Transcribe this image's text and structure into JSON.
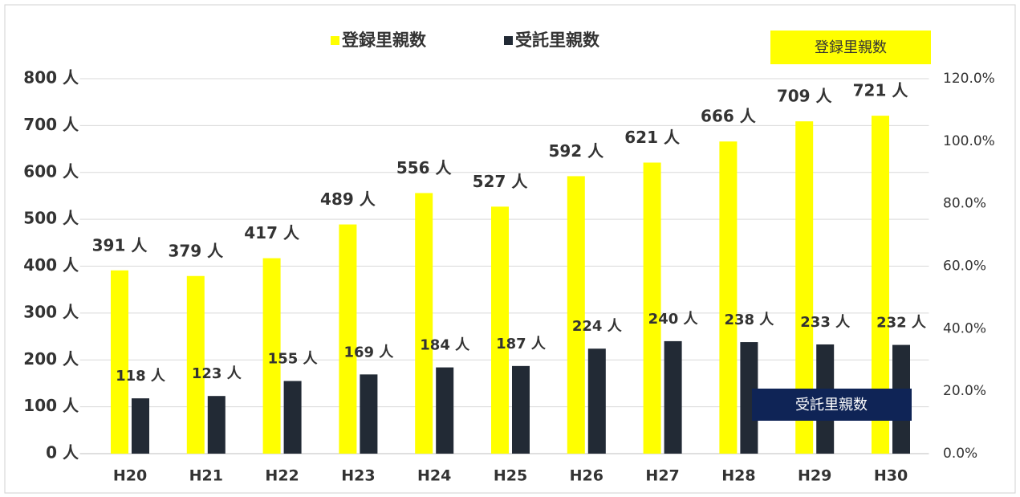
{
  "chart_data": {
    "type": "bar",
    "categories": [
      "H20",
      "H21",
      "H22",
      "H23",
      "H24",
      "H25",
      "H26",
      "H27",
      "H28",
      "H29",
      "H30"
    ],
    "series": [
      {
        "name": "登録里親数",
        "color": "#ffff00",
        "values": [
          391,
          379,
          417,
          489,
          556,
          527,
          592,
          621,
          666,
          709,
          721
        ],
        "value_labels": [
          "391 人",
          "379 人",
          "417 人",
          "489 人",
          "556 人",
          "527 人",
          "592 人",
          "621 人",
          "666 人",
          "709 人",
          "721 人"
        ]
      },
      {
        "name": "受託里親数",
        "color": "#222a35",
        "values": [
          118,
          123,
          155,
          169,
          184,
          187,
          224,
          240,
          238,
          233,
          232
        ],
        "value_labels": [
          "118 人",
          "123 人",
          "155 人",
          "169 人",
          "184 人",
          "187 人",
          "224 人",
          "240 人",
          "238 人",
          "233 人",
          "232 人"
        ]
      }
    ],
    "ylim": [
      0,
      800
    ],
    "yticks": [
      {
        "value": 0,
        "label": "0 人"
      },
      {
        "value": 100,
        "label": "100 人"
      },
      {
        "value": 200,
        "label": "200 人"
      },
      {
        "value": 300,
        "label": "300 人"
      },
      {
        "value": 400,
        "label": "400 人"
      },
      {
        "value": 500,
        "label": "500 人"
      },
      {
        "value": 600,
        "label": "600 人"
      },
      {
        "value": 700,
        "label": "700 人"
      },
      {
        "value": 800,
        "label": "800 人"
      }
    ],
    "y2lim": [
      0,
      120
    ],
    "y2ticks": [
      {
        "value": 0,
        "label": "0.0%"
      },
      {
        "value": 20,
        "label": "20.0%"
      },
      {
        "value": 40,
        "label": "40.0%"
      },
      {
        "value": 60,
        "label": "60.0%"
      },
      {
        "value": 80,
        "label": "80.0%"
      },
      {
        "value": 100,
        "label": "100.0%"
      },
      {
        "value": 120,
        "label": "120.0%"
      }
    ],
    "grid": true,
    "legend": "top",
    "annotations": [
      "登録里親数",
      "受託里親数"
    ]
  }
}
